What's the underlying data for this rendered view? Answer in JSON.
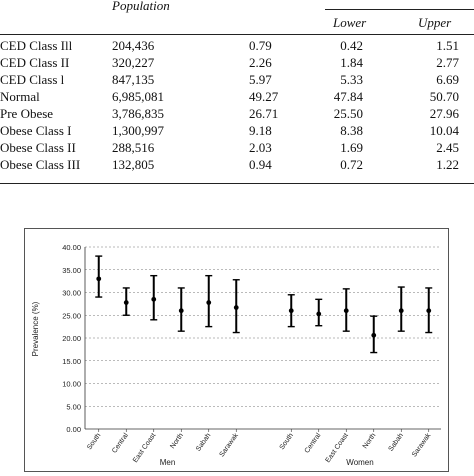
{
  "table": {
    "headers": {
      "population": "Population",
      "lower": "Lower",
      "upper": "Upper"
    },
    "rows": [
      {
        "label": "CED Class Ill",
        "population": "204,436",
        "percent": "0.79",
        "lower": "0.42",
        "upper": "1.51"
      },
      {
        "label": "CED Class II",
        "population": "320,227",
        "percent": "2.26",
        "lower": "1.84",
        "upper": "2.77"
      },
      {
        "label": "CED Class l",
        "population": "847,135",
        "percent": "5.97",
        "lower": "5.33",
        "upper": "6.69"
      },
      {
        "label": "Normal",
        "population": "6,985,081",
        "percent": "49.27",
        "lower": "47.84",
        "upper": "50.70"
      },
      {
        "label": "Pre Obese",
        "population": "3,786,835",
        "percent": "26.71",
        "lower": "25.50",
        "upper": "27.96"
      },
      {
        "label": "Obese Class I",
        "population": "1,300,997",
        "percent": "9.18",
        "lower": "8.38",
        "upper": "10.04"
      },
      {
        "label": "Obese Class II",
        "population": "288,516",
        "percent": "2.03",
        "lower": "1.69",
        "upper": "2.45"
      },
      {
        "label": "Obese Class III",
        "population": "132,805",
        "percent": "0.94",
        "lower": "0.72",
        "upper": "1.22"
      }
    ]
  },
  "chart_data": {
    "type": "scatter",
    "ylabel": "Prevalence (%)",
    "ylim": [
      0,
      40
    ],
    "yticks": [
      "0.00",
      "5.00",
      "10.00",
      "15.00",
      "20.00",
      "25.00",
      "30.00",
      "35.00",
      "40.00"
    ],
    "grid": true,
    "groups": [
      {
        "name": "Men",
        "points": [
          {
            "region": "South",
            "value": 33.0,
            "lower": 29.0,
            "upper": 38.0
          },
          {
            "region": "Central",
            "value": 27.8,
            "lower": 25.0,
            "upper": 31.0
          },
          {
            "region": "East Coast",
            "value": 28.5,
            "lower": 24.0,
            "upper": 33.7
          },
          {
            "region": "North",
            "value": 26.0,
            "lower": 21.5,
            "upper": 31.0
          },
          {
            "region": "Sabah",
            "value": 27.8,
            "lower": 22.5,
            "upper": 33.7
          },
          {
            "region": "Sarawak",
            "value": 26.7,
            "lower": 21.2,
            "upper": 32.8
          }
        ]
      },
      {
        "name": "Women",
        "points": [
          {
            "region": "South",
            "value": 26.0,
            "lower": 22.5,
            "upper": 29.5
          },
          {
            "region": "Central",
            "value": 25.3,
            "lower": 22.7,
            "upper": 28.5
          },
          {
            "region": "East Coast",
            "value": 26.0,
            "lower": 21.5,
            "upper": 30.8
          },
          {
            "region": "North",
            "value": 20.6,
            "lower": 16.8,
            "upper": 24.8
          },
          {
            "region": "Sabah",
            "value": 26.0,
            "lower": 21.5,
            "upper": 31.2
          },
          {
            "region": "Sarawak",
            "value": 26.0,
            "lower": 21.2,
            "upper": 31.0
          }
        ]
      }
    ]
  }
}
